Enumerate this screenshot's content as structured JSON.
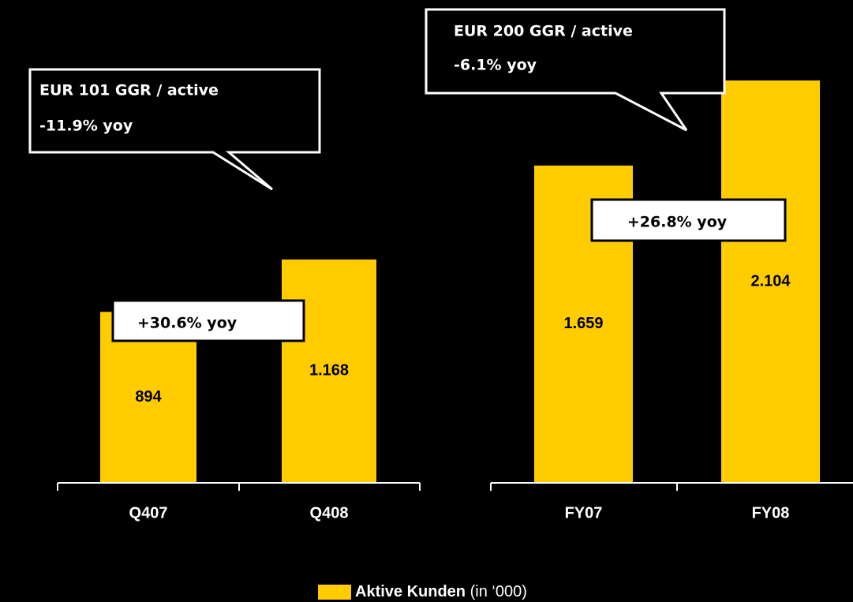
{
  "chart_data": [
    {
      "type": "bar",
      "categories": [
        "Q407",
        "Q408"
      ],
      "series": [
        {
          "name": "Aktive Kunden",
          "color": "#ffcc00",
          "values": [
            894,
            1168
          ],
          "value_labels": [
            "894",
            "1.168"
          ]
        }
      ],
      "ylim": [
        0,
        2500
      ],
      "callout": [
        "EUR 101 GGR / active",
        "-11.9% yoy"
      ],
      "growth": "+30.6% yoy"
    },
    {
      "type": "bar",
      "categories": [
        "FY07",
        "FY08"
      ],
      "series": [
        {
          "name": "Aktive Kunden",
          "color": "#ffcc00",
          "values": [
            1659,
            2104
          ],
          "value_labels": [
            "1.659",
            "2.104"
          ]
        }
      ],
      "ylim": [
        0,
        2500
      ],
      "callout": [
        "EUR 200 GGR / active",
        "-6.1% yoy"
      ],
      "growth": "+26.8% yoy"
    }
  ],
  "legend": {
    "name": "Aktive Kunden",
    "unit": "(in ‘000)"
  }
}
